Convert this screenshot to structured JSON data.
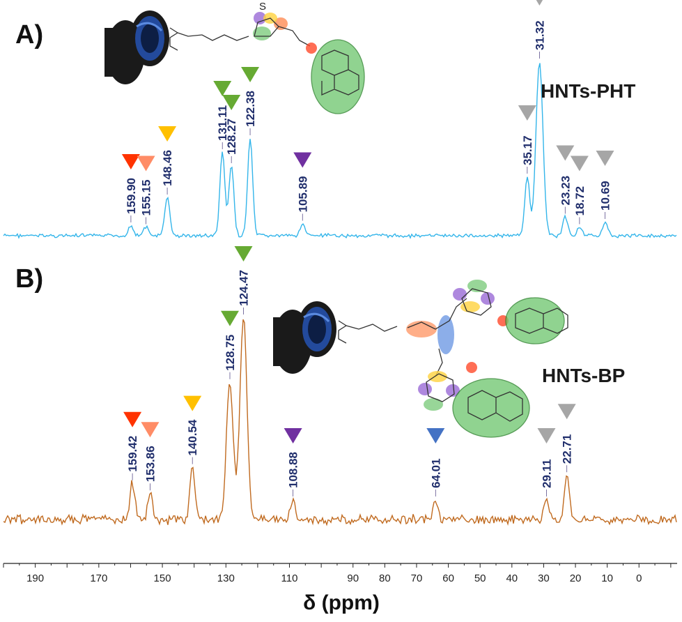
{
  "chart_data": [
    {
      "type": "line",
      "panel": "A)",
      "sample": "HNTs-PHT",
      "color": "#33b5ea",
      "peaks": [
        {
          "x": 159.9,
          "label": "159.90",
          "marker": "#ff3300",
          "h": 0.06
        },
        {
          "x": 155.15,
          "label": "155.15",
          "marker": "#ff8c66",
          "h": 0.05
        },
        {
          "x": 148.46,
          "label": "148.46",
          "marker": "#ffc000",
          "h": 0.22
        },
        {
          "x": 131.11,
          "label": "131.11",
          "marker": "#66aa33",
          "h": 0.48
        },
        {
          "x": 128.27,
          "label": "128.27",
          "marker": "#66aa33",
          "h": 0.4
        },
        {
          "x": 122.38,
          "label": "122.38",
          "marker": "#66aa33",
          "h": 0.56
        },
        {
          "x": 105.89,
          "label": "105.89",
          "marker": "#7030a0",
          "h": 0.07
        },
        {
          "x": 35.17,
          "label": "35.17",
          "marker": "#a6a6a6",
          "h": 0.34
        },
        {
          "x": 31.32,
          "label": "31.32",
          "marker": "#a6a6a6",
          "h": 1.0
        },
        {
          "x": 23.23,
          "label": "23.23",
          "marker": "#a6a6a6",
          "h": 0.11
        },
        {
          "x": 18.72,
          "label": "18.72",
          "marker": "#a6a6a6",
          "h": 0.05
        },
        {
          "x": 10.69,
          "label": "10.69",
          "marker": "#a6a6a6",
          "h": 0.08
        }
      ]
    },
    {
      "type": "line",
      "panel": "B)",
      "sample": "HNTs-BP",
      "color": "#c06a1f",
      "peaks": [
        {
          "x": 159.42,
          "label": "159.42",
          "marker": "#ff3300",
          "h": 0.18
        },
        {
          "x": 153.86,
          "label": "153.86",
          "marker": "#ff8c66",
          "h": 0.13
        },
        {
          "x": 140.54,
          "label": "140.54",
          "marker": "#ffc000",
          "h": 0.26
        },
        {
          "x": 128.75,
          "label": "128.75",
          "marker": "#66aa33",
          "h": 0.68
        },
        {
          "x": 124.47,
          "label": "124.47",
          "marker": "#66aa33",
          "h": 1.0
        },
        {
          "x": 108.88,
          "label": "108.88",
          "marker": "#7030a0",
          "h": 0.1
        },
        {
          "x": 64.01,
          "label": "64.01",
          "marker": "#4472c4",
          "h": 0.1
        },
        {
          "x": 29.11,
          "label": "29.11",
          "marker": "#a6a6a6",
          "h": 0.1
        },
        {
          "x": 22.71,
          "label": "22.71",
          "marker": "#a6a6a6",
          "h": 0.22
        }
      ]
    }
  ],
  "axis": {
    "xlabel": "δ (ppm)",
    "xlim": [
      200,
      -12
    ],
    "reversed": true,
    "ticks": [
      190,
      170,
      150,
      130,
      110,
      90,
      80,
      70,
      60,
      50,
      40,
      30,
      20,
      10,
      0
    ]
  }
}
